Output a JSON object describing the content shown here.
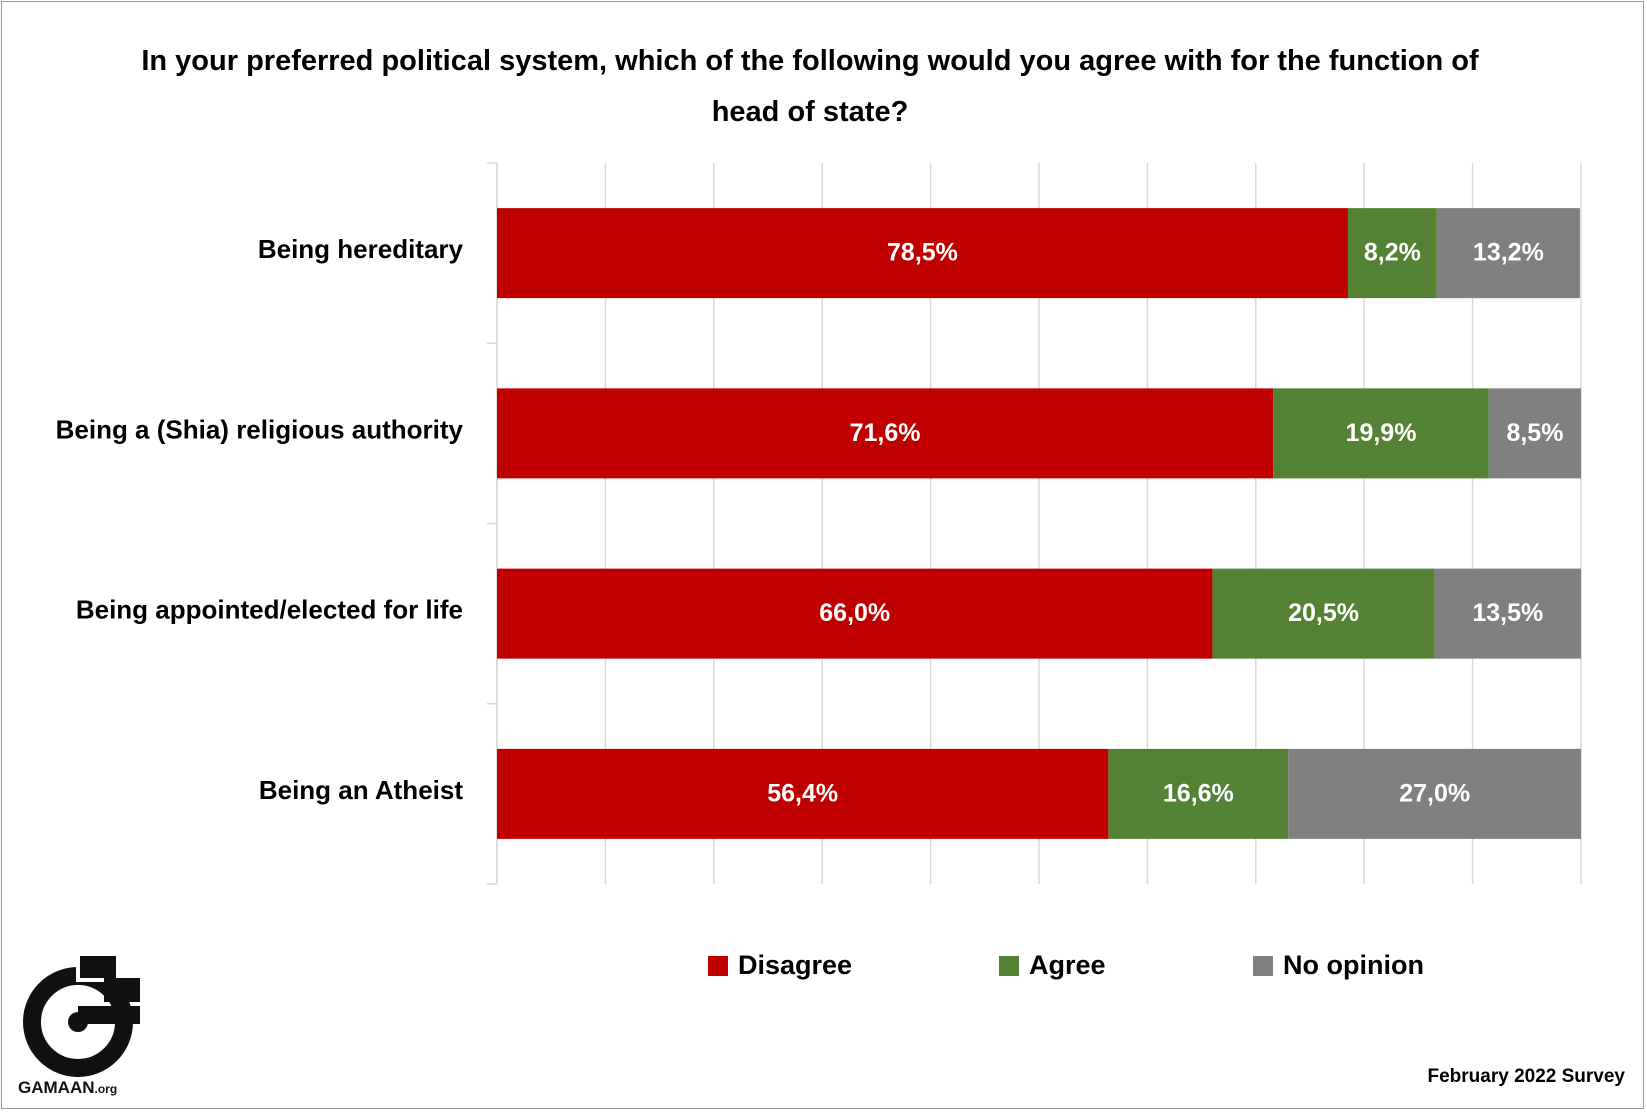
{
  "chart_data": {
    "type": "bar",
    "orientation": "horizontal",
    "stacked": true,
    "title": "In your preferred political system, which of the following would you agree with for the function of head of state?",
    "categories": [
      "Being hereditary",
      "Being a (Shia) religious authority",
      "Being appointed/elected for life",
      "Being an Atheist"
    ],
    "series": [
      {
        "name": "Disagree",
        "color": "#c00000",
        "values": [
          78.5,
          71.6,
          66.0,
          56.4
        ],
        "labels": [
          "78,5%",
          "71,6%",
          "66,0%",
          "56,4%"
        ]
      },
      {
        "name": "Agree",
        "color": "#548235",
        "values": [
          8.2,
          19.9,
          20.5,
          16.6
        ],
        "labels": [
          "8,2%",
          "19,9%",
          "20,5%",
          "16,6%"
        ]
      },
      {
        "name": "No opinion",
        "color": "#808080",
        "values": [
          13.2,
          8.5,
          13.5,
          27.0
        ],
        "labels": [
          "13,2%",
          "8,5%",
          "13,5%",
          "27,0%"
        ]
      }
    ],
    "xlim": [
      0,
      100
    ],
    "grid": true,
    "legend": "bottom"
  },
  "logo": {
    "brand": "GAMAAN",
    "suffix": ".org"
  },
  "footnote": "February 2022 Survey"
}
